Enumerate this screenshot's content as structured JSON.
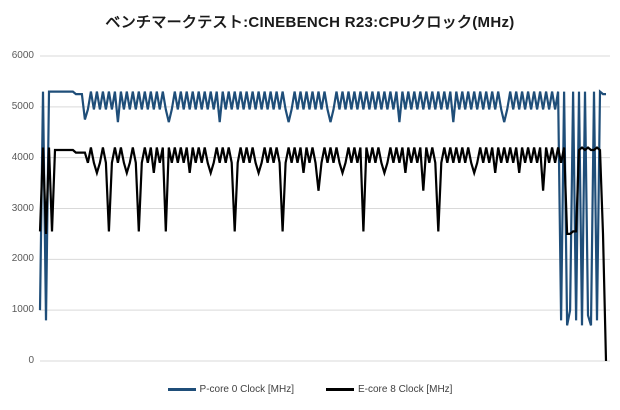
{
  "chart_data": {
    "type": "line",
    "title": "ベンチマークテスト:CINEBENCH R23:CPUクロック(MHz)",
    "xlabel": "",
    "ylabel": "",
    "ylim": [
      0,
      6000
    ],
    "yticks": [
      6000,
      5000,
      4000,
      3000,
      2000,
      1000,
      0
    ],
    "xticks": [],
    "grid": true,
    "legend_position": "bottom",
    "series": [
      {
        "id": "p-core-0",
        "name": "P-core 0 Clock [MHz]",
        "color": "#1F4E79",
        "values": [
          1000,
          5300,
          800,
          5300,
          5300,
          5300,
          5300,
          5300,
          5300,
          5300,
          5300,
          5300,
          5250,
          5250,
          5250,
          4750,
          4950,
          5300,
          4950,
          5300,
          4950,
          5300,
          4950,
          5300,
          4950,
          5300,
          4700,
          5300,
          4950,
          5300,
          4950,
          5300,
          4950,
          5300,
          4950,
          5300,
          4950,
          5300,
          4950,
          5300,
          4950,
          5300,
          4950,
          4700,
          4950,
          5300,
          4950,
          5300,
          4950,
          5300,
          4950,
          5300,
          4950,
          5300,
          4950,
          5300,
          4950,
          5300,
          4950,
          5300,
          4700,
          5300,
          4950,
          5300,
          4950,
          5300,
          4950,
          5300,
          4950,
          5300,
          4950,
          5300,
          4950,
          5300,
          4950,
          5300,
          4950,
          5300,
          4950,
          5300,
          4950,
          5300,
          4950,
          4700,
          4950,
          5300,
          4950,
          5300,
          4950,
          5300,
          4950,
          5300,
          4950,
          5300,
          4950,
          5300,
          4950,
          4700,
          4950,
          5300,
          4950,
          5300,
          4950,
          5300,
          4950,
          5300,
          4950,
          5300,
          4950,
          5300,
          4950,
          5300,
          4950,
          5300,
          4950,
          5300,
          4950,
          5300,
          4950,
          5300,
          4700,
          5300,
          4950,
          5300,
          4950,
          5300,
          4950,
          5300,
          4950,
          5300,
          4950,
          5300,
          4950,
          5300,
          4950,
          5300,
          4950,
          5300,
          4700,
          5300,
          4950,
          5300,
          4950,
          5300,
          4950,
          5300,
          4950,
          5300,
          4950,
          5300,
          4950,
          5300,
          4950,
          5300,
          4950,
          4700,
          4950,
          5300,
          4950,
          5300,
          4950,
          5300,
          4950,
          5300,
          4950,
          5300,
          4950,
          5300,
          4950,
          5300,
          4950,
          5300,
          4950,
          5300,
          800,
          5300,
          700,
          1000,
          5300,
          800,
          5300,
          700,
          5300,
          900,
          700,
          5300,
          800,
          5300,
          5250,
          5250
        ]
      },
      {
        "id": "e-core-8",
        "name": "E-core 8 Clock [MHz]",
        "color": "#000000",
        "values": [
          2550,
          4200,
          2500,
          4200,
          2550,
          4150,
          4150,
          4150,
          4150,
          4150,
          4150,
          4150,
          4100,
          4100,
          4100,
          4100,
          3900,
          4200,
          3900,
          3700,
          3900,
          4200,
          3900,
          2550,
          3900,
          4200,
          3900,
          4200,
          3900,
          3700,
          3900,
          4200,
          3900,
          2550,
          3900,
          4200,
          3900,
          4200,
          3700,
          4200,
          3900,
          4200,
          2550,
          4200,
          3900,
          4200,
          3900,
          4200,
          3900,
          4200,
          3700,
          4200,
          3900,
          4200,
          3900,
          4200,
          3900,
          3700,
          3900,
          4200,
          3900,
          4200,
          3900,
          4200,
          3900,
          2550,
          3900,
          4200,
          3900,
          4200,
          3900,
          4200,
          3900,
          3700,
          3900,
          4200,
          3900,
          4200,
          3900,
          4200,
          3900,
          2550,
          3900,
          4200,
          3900,
          4200,
          3900,
          4200,
          3700,
          4200,
          3900,
          4200,
          3900,
          3350,
          3900,
          4200,
          3900,
          4200,
          3900,
          4200,
          3900,
          3700,
          3900,
          4200,
          3900,
          4200,
          3900,
          4200,
          2550,
          4200,
          3900,
          4200,
          3900,
          4200,
          3900,
          3700,
          3900,
          4200,
          3900,
          4200,
          3900,
          4200,
          3700,
          4200,
          3900,
          4200,
          3900,
          4200,
          3350,
          4200,
          3900,
          4200,
          3900,
          2550,
          3900,
          4200,
          3900,
          4200,
          3900,
          4200,
          3900,
          4200,
          3900,
          4200,
          3900,
          3700,
          3900,
          4200,
          3900,
          4200,
          3900,
          4200,
          3700,
          4200,
          3900,
          4200,
          3900,
          4200,
          3900,
          4200,
          3700,
          4200,
          3900,
          4200,
          3900,
          4200,
          3900,
          4200,
          3350,
          4200,
          3900,
          4200,
          3900,
          4200,
          3900,
          4200,
          2500,
          2500,
          2550,
          2550,
          4150,
          4200,
          4150,
          4200,
          4150,
          4150,
          4200,
          4150,
          2500,
          0
        ]
      }
    ]
  }
}
